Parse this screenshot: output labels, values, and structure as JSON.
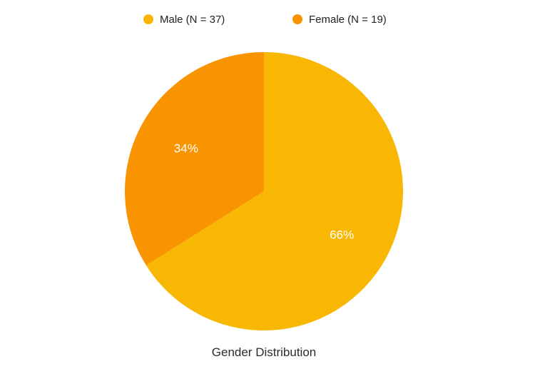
{
  "chart_data": {
    "type": "pie",
    "title": "Gender Distribution",
    "legend_position": "top",
    "slices": [
      {
        "label": "Male (N = 37)",
        "value": 37,
        "percent_label": "66%",
        "color": "#F7B703"
      },
      {
        "label": "Female (N = 19)",
        "value": 19,
        "percent_label": "34%",
        "color": "#FA9300"
      }
    ]
  }
}
